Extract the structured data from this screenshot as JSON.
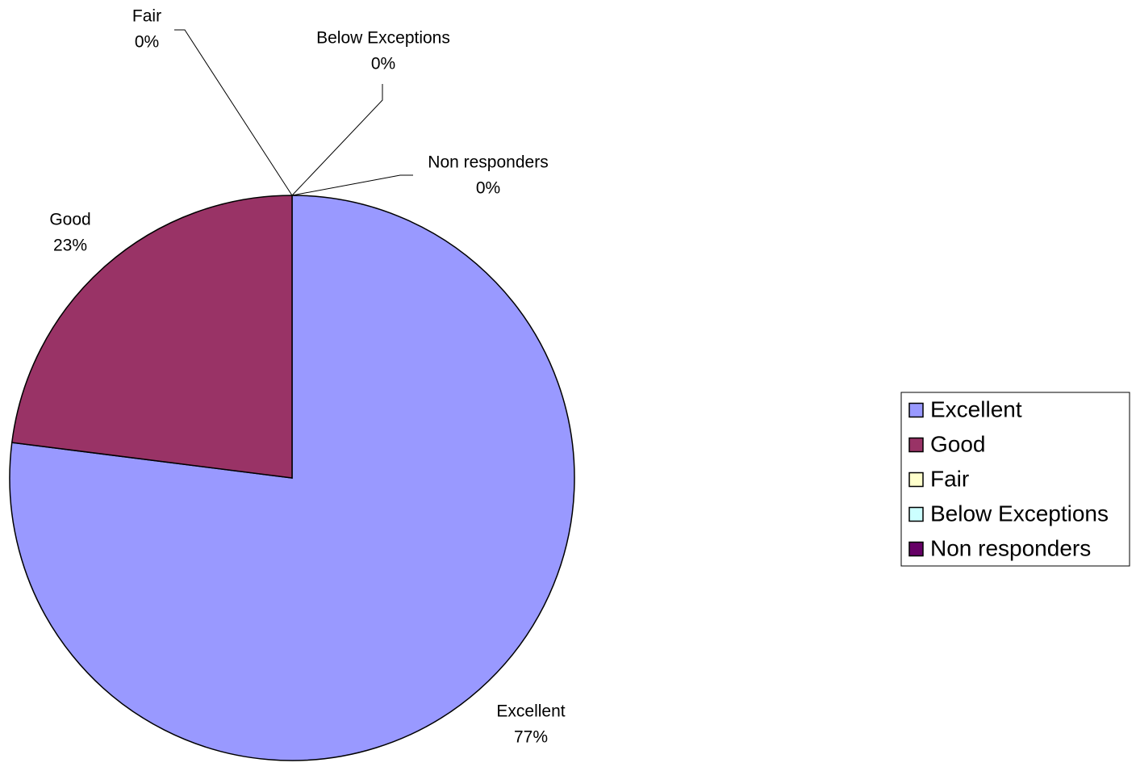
{
  "chart_data": {
    "type": "pie",
    "title": "",
    "slices": [
      {
        "name": "Excellent",
        "value": 77,
        "label": "77%",
        "color": "#9999ff"
      },
      {
        "name": "Good",
        "value": 23,
        "label": "23%",
        "color": "#993366"
      },
      {
        "name": "Fair",
        "value": 0,
        "label": "0%",
        "color": "#ffffcc"
      },
      {
        "name": "Below Exceptions",
        "value": 0,
        "label": "0%",
        "color": "#ccffff"
      },
      {
        "name": "Non responders",
        "value": 0,
        "label": "0%",
        "color": "#660066"
      }
    ],
    "legend": {
      "position": "right",
      "entries": [
        "Excellent",
        "Good",
        "Fair",
        "Below Exceptions",
        "Non responders"
      ]
    },
    "data_labels": "category name and percentage"
  }
}
